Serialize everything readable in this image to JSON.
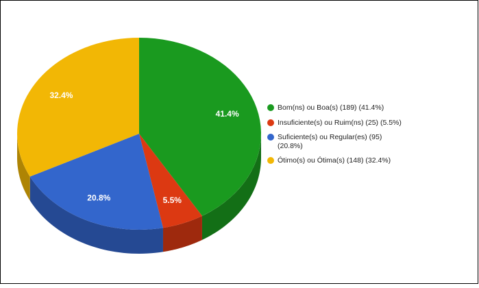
{
  "chart_data": {
    "type": "pie",
    "categories": [
      "Bom(ns) ou Boa(s) (189) (41.4%)",
      "Insuficiente(s) ou Ruim(ns) (25) (5.5%)",
      "Suficiente(s) ou Regular(es) (95) (20.8%)",
      "Ótimo(s) ou Ótima(s) (148) (32.4%)"
    ],
    "values": [
      41.4,
      5.5,
      20.8,
      32.4
    ],
    "value_labels": [
      "41.4%",
      "5.5%",
      "20.8%",
      "32.4%"
    ],
    "colors": [
      "#1a9a1f",
      "#dc3912",
      "#3366cc",
      "#f2b705"
    ],
    "legend": "right"
  }
}
